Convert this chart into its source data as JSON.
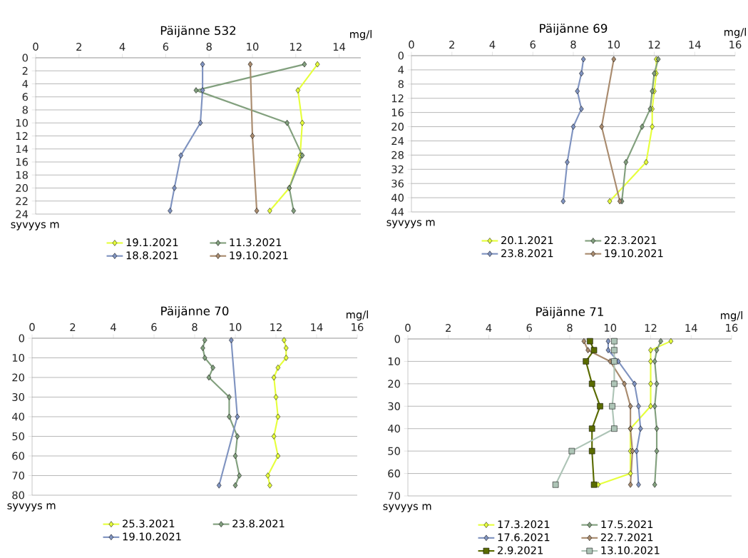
{
  "chart_data": [
    {
      "type": "line",
      "title": "Päijänne 532",
      "xlabel": "mg/l",
      "ylabel": "syvyys m",
      "xlim": [
        0,
        15
      ],
      "xticks": [
        0,
        2,
        4,
        6,
        8,
        10,
        12,
        14
      ],
      "ylim": [
        24,
        0
      ],
      "yticks": [
        0,
        2,
        4,
        6,
        8,
        10,
        12,
        14,
        16,
        18,
        20,
        22,
        24
      ],
      "grid": "y",
      "legend": "bottom",
      "marker": "diamond",
      "series": [
        {
          "name": "19.1.2021",
          "color": "#e6ff3c",
          "x": [
            13.0,
            12.1,
            12.3,
            12.2,
            11.7,
            10.8
          ],
          "values": [
            1,
            5,
            10,
            15,
            20,
            23.5
          ]
        },
        {
          "name": "11.3.2021",
          "color": "#82a07e",
          "x": [
            12.4,
            7.4,
            11.6,
            12.3,
            11.7,
            11.9
          ],
          "values": [
            1,
            5,
            10,
            15,
            20,
            23.5
          ]
        },
        {
          "name": "18.8.2021",
          "color": "#7f93c0",
          "x": [
            7.7,
            7.7,
            7.6,
            6.7,
            6.4,
            6.2
          ],
          "values": [
            1,
            5,
            10,
            15,
            20,
            23.5
          ]
        },
        {
          "name": "19.10.2021",
          "color": "#a98b6e",
          "x": [
            9.9,
            10.0,
            10.2
          ],
          "values": [
            1,
            12,
            23.5
          ]
        }
      ]
    },
    {
      "type": "line",
      "title": "Päijänne 69",
      "xlabel": "mg/l",
      "ylabel": "syvyys m",
      "xlim": [
        0,
        16
      ],
      "xticks": [
        0,
        2,
        4,
        6,
        8,
        10,
        12,
        14,
        16
      ],
      "ylim": [
        44,
        0
      ],
      "yticks": [
        0,
        4,
        8,
        12,
        16,
        20,
        24,
        28,
        32,
        36,
        40,
        44
      ],
      "grid": "y",
      "legend": "bottom",
      "marker": "diamond",
      "series": [
        {
          "name": "20.1.2021",
          "color": "#e6ff3c",
          "x": [
            12.1,
            12.1,
            12.0,
            11.9,
            11.9,
            11.6,
            9.8
          ],
          "values": [
            1,
            5,
            10,
            15,
            20,
            30,
            41
          ]
        },
        {
          "name": "22.3.2021",
          "color": "#82a07e",
          "x": [
            12.2,
            12.0,
            11.9,
            11.8,
            11.4,
            10.6,
            10.4
          ],
          "values": [
            1,
            5,
            10,
            15,
            20,
            30,
            41
          ]
        },
        {
          "name": "23.8.2021",
          "color": "#7f93c0",
          "x": [
            8.5,
            8.4,
            8.2,
            8.4,
            8.0,
            7.7,
            7.5
          ],
          "values": [
            1,
            5,
            10,
            15,
            20,
            30,
            41
          ]
        },
        {
          "name": "19.10.2021",
          "color": "#a98b6e",
          "x": [
            10.0,
            9.4,
            10.3
          ],
          "values": [
            1,
            20,
            41
          ]
        }
      ]
    },
    {
      "type": "line",
      "title": "Päijänne 70",
      "xlabel": "mg/l",
      "ylabel": "syvyys m",
      "xlim": [
        0,
        16
      ],
      "xticks": [
        0,
        2,
        4,
        6,
        8,
        10,
        12,
        14,
        16
      ],
      "ylim": [
        80,
        0
      ],
      "yticks": [
        0,
        10,
        20,
        30,
        40,
        50,
        60,
        70,
        80
      ],
      "grid": "y",
      "legend": "bottom",
      "marker": "diamond",
      "series": [
        {
          "name": "25.3.2021",
          "color": "#e6ff3c",
          "x": [
            12.4,
            12.5,
            12.5,
            12.1,
            11.9,
            12.0,
            12.1,
            11.9,
            12.1,
            11.6,
            11.7
          ],
          "values": [
            1,
            5,
            10,
            15,
            20,
            30,
            40,
            50,
            60,
            70,
            75
          ]
        },
        {
          "name": "23.8.2021",
          "color": "#82a07e",
          "x": [
            8.5,
            8.4,
            8.5,
            8.9,
            8.7,
            9.7,
            9.7,
            10.1,
            10.0,
            10.2,
            10.0
          ],
          "values": [
            1,
            5,
            10,
            15,
            20,
            30,
            40,
            50,
            60,
            70,
            75
          ]
        },
        {
          "name": "19.10.2021",
          "color": "#7f93c0",
          "x": [
            9.8,
            10.1,
            9.2
          ],
          "values": [
            1,
            40,
            75
          ]
        }
      ]
    },
    {
      "type": "line",
      "title": "Päijänne 71",
      "xlabel": "mg/l",
      "ylabel": "syvyys m",
      "xlim": [
        0,
        16
      ],
      "xticks": [
        0,
        2,
        4,
        6,
        8,
        10,
        12,
        14,
        16
      ],
      "ylim": [
        70,
        0
      ],
      "yticks": [
        0,
        10,
        20,
        30,
        40,
        50,
        60,
        70
      ],
      "grid": "y",
      "legend": "bottom",
      "marker": "diamond",
      "series": [
        {
          "name": "17.3.2021",
          "color": "#e6ff3c",
          "x": [
            13.0,
            12.0,
            12.0,
            12.0,
            12.0,
            11.0,
            11.0,
            11.0,
            9.4
          ],
          "values": [
            1,
            5,
            10,
            20,
            30,
            40,
            50,
            60,
            65
          ]
        },
        {
          "name": "17.5.2021",
          "color": "#82a07e",
          "x": [
            12.5,
            12.3,
            12.2,
            12.3,
            12.2,
            12.3,
            12.3,
            12.2
          ],
          "values": [
            1,
            5,
            10,
            20,
            30,
            40,
            50,
            65
          ]
        },
        {
          "name": "17.6.2021",
          "color": "#7f93c0",
          "x": [
            9.9,
            9.9,
            10.4,
            11.2,
            11.4,
            11.5,
            11.3,
            11.4
          ],
          "values": [
            1,
            5,
            10,
            20,
            30,
            40,
            50,
            65
          ]
        },
        {
          "name": "22.7.2021",
          "color": "#a98b6e",
          "x": [
            8.7,
            8.9,
            10.0,
            10.7,
            11.0,
            11.0,
            11.1,
            11.0
          ],
          "values": [
            1,
            5,
            10,
            20,
            30,
            40,
            50,
            65
          ]
        },
        {
          "name": "2.9.2021",
          "color": "#5a6b00",
          "marker": "square",
          "x": [
            9.0,
            9.2,
            8.8,
            9.1,
            9.5,
            9.1,
            9.1,
            9.2
          ],
          "values": [
            1,
            5,
            10,
            20,
            30,
            40,
            50,
            65
          ]
        },
        {
          "name": "13.10.2021",
          "color": "#adc4b6",
          "marker": "square",
          "x": [
            10.2,
            10.2,
            10.2,
            10.2,
            10.1,
            10.2,
            8.1,
            7.3
          ],
          "values": [
            1,
            5,
            10,
            20,
            30,
            40,
            50,
            65
          ]
        }
      ]
    }
  ]
}
